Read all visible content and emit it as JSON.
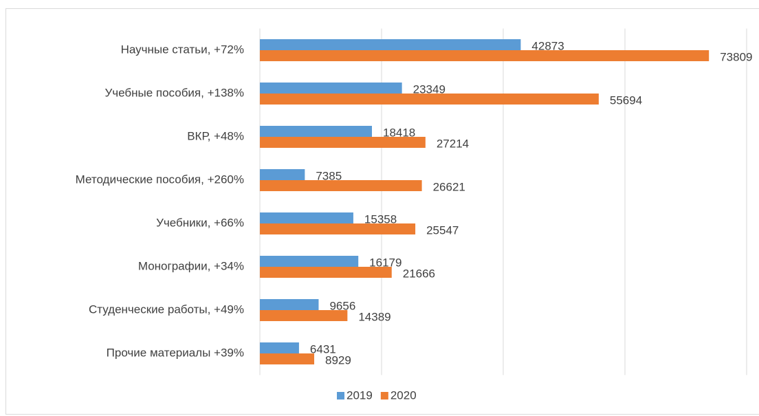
{
  "chart_data": {
    "type": "bar",
    "orientation": "horizontal",
    "categories": [
      "Научные статьи, +72%",
      "Учебные пособия, +138%",
      "ВКР, +48%",
      "Методические пособия, +260%",
      "Учебники, +66%",
      "Монографии, +34%",
      "Студенческие работы, +49%",
      "Прочие материалы +39%"
    ],
    "series": [
      {
        "name": "2019",
        "color": "#5b9bd5",
        "values": [
          42873,
          23349,
          18418,
          7385,
          15358,
          16179,
          9656,
          6431
        ]
      },
      {
        "name": "2020",
        "color": "#ed7d31",
        "values": [
          73809,
          55694,
          27214,
          26621,
          25547,
          21666,
          14389,
          8929
        ]
      }
    ],
    "xlim": [
      0,
      80000
    ],
    "xticks": [
      0,
      20000,
      40000,
      60000,
      80000
    ],
    "grid": true,
    "legend": "bottom"
  }
}
